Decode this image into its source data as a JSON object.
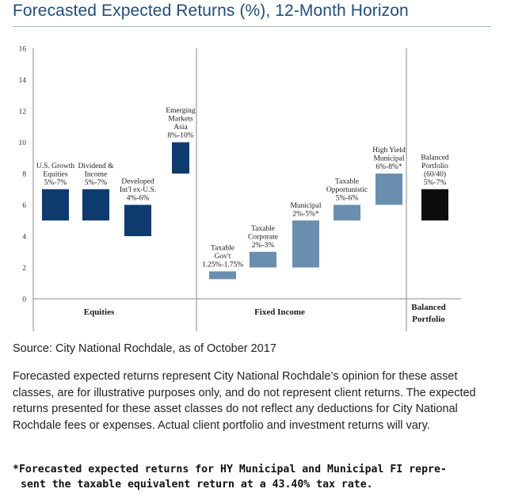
{
  "title": "Forecasted Expected Returns (%), 12-Month Horizon",
  "source": "Source: City National Rochdale, as of October 2017",
  "body": "Forecasted expected returns represent City National Rochdale’s opinion for these asset classes, are for illustrative purposes only, and do not represent client returns. The expected returns presented for these asset classes do not reflect any deductions for City National Rochdale fees or expenses. Actual client portfolio and investment returns will vary.",
  "footnote": {
    "line1": "*Forecasted expected returns for HY Municipal and Municipal FI repre-",
    "line2": "sent the taxable equivalent return at a 43.40% tax rate."
  },
  "chart_data": {
    "type": "bar",
    "title": "Forecasted Expected Returns (%), 12-Month Horizon",
    "ylim": [
      0,
      16
    ],
    "yticks": [
      0,
      2,
      4,
      6,
      8,
      10,
      12,
      14,
      16
    ],
    "grid": false,
    "groups": [
      {
        "name": "Equities",
        "label_lines": [
          "Equities"
        ]
      },
      {
        "name": "Fixed Income",
        "label_lines": [
          "Fixed Income"
        ]
      },
      {
        "name": "Balanced Portfolio",
        "label_lines": [
          "Balanced",
          "Portfolio"
        ]
      }
    ],
    "bars": [
      {
        "group": "Equities",
        "label_lines": [
          "U.S. Growth",
          "Equities",
          "5%-7%"
        ],
        "low": 5,
        "high": 7,
        "color": "#0d3b6e"
      },
      {
        "group": "Equities",
        "label_lines": [
          "Dividend &",
          "Income",
          "5%-7%"
        ],
        "low": 5,
        "high": 7,
        "color": "#0d3b6e"
      },
      {
        "group": "Equities",
        "label_lines": [
          "Developed",
          "Int'l ex-U.S.",
          "4%-6%"
        ],
        "low": 4,
        "high": 6,
        "color": "#0d3b6e"
      },
      {
        "group": "Equities",
        "label_lines": [
          "Emerging",
          "Markets",
          "Asia",
          "8%-10%"
        ],
        "low": 8,
        "high": 10,
        "color": "#0d3b6e"
      },
      {
        "group": "Fixed Income",
        "label_lines": [
          "Taxable",
          "Gov't",
          "1.25%-1.75%"
        ],
        "low": 1.25,
        "high": 1.75,
        "color": "#6a8fae"
      },
      {
        "group": "Fixed Income",
        "label_lines": [
          "Taxable",
          "Corporate",
          "2%-3%"
        ],
        "low": 2,
        "high": 3,
        "color": "#6a8fae"
      },
      {
        "group": "Fixed Income",
        "label_lines": [
          "Municipal",
          "2%-5%*"
        ],
        "low": 2,
        "high": 5,
        "color": "#6a8fae"
      },
      {
        "group": "Fixed Income",
        "label_lines": [
          "Taxable",
          "Opportunistic",
          "5%-6%"
        ],
        "low": 5,
        "high": 6,
        "color": "#6a8fae"
      },
      {
        "group": "Fixed Income",
        "label_lines": [
          "High Yield",
          "Municipal",
          "6%-8%*"
        ],
        "low": 6,
        "high": 8,
        "color": "#6a8fae"
      },
      {
        "group": "Balanced Portfolio",
        "label_lines": [
          "Balanced",
          "Portfolio",
          "(60/40)",
          "5%-7%"
        ],
        "low": 5,
        "high": 7,
        "color": "#0d0d0d"
      }
    ]
  }
}
